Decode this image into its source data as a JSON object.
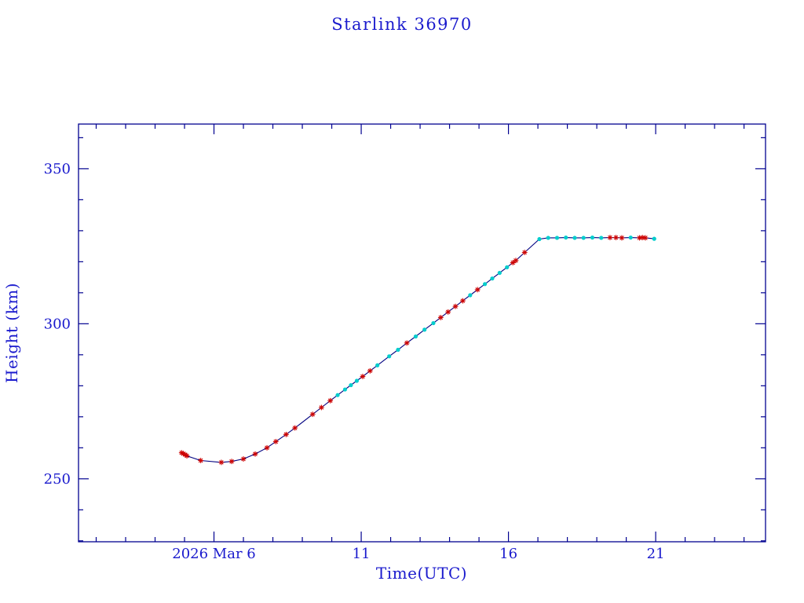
{
  "chart_data": {
    "type": "line",
    "title": "Starlink 36970",
    "xlabel": "Time(UTC)",
    "ylabel": "Height (km)",
    "x_unit": "day of 2026 March (UTC)",
    "xlim": [
      1.4,
      24.73
    ],
    "ylim": [
      229.7,
      364.4
    ],
    "x_major_ticks": [
      {
        "value": 6,
        "label": "2026 Mar 6"
      },
      {
        "value": 11,
        "label": "11"
      },
      {
        "value": 16,
        "label": "16"
      },
      {
        "value": 21,
        "label": "21"
      }
    ],
    "x_minor_tick_step": 1,
    "y_major_ticks": [
      {
        "value": 250,
        "label": "250"
      },
      {
        "value": 300,
        "label": "300"
      },
      {
        "value": 350,
        "label": "350"
      }
    ],
    "y_minor_tick_step": 10,
    "grid": false,
    "legend": "none",
    "colors": {
      "background": "#ffffff",
      "text": "#1a1acd",
      "frame": "#000090",
      "line": "#000080",
      "marker_red": "#cd0000",
      "marker_cyan": "#00cdcd"
    },
    "points": [
      {
        "x": 4.9,
        "y": 258.4,
        "m": "red"
      },
      {
        "x": 4.96,
        "y": 258.1,
        "m": "red"
      },
      {
        "x": 5.02,
        "y": 257.8,
        "m": "red"
      },
      {
        "x": 5.08,
        "y": 257.4,
        "m": "red"
      },
      {
        "x": 5.55,
        "y": 255.9,
        "m": "red"
      },
      {
        "x": 6.25,
        "y": 255.3,
        "m": "red"
      },
      {
        "x": 6.6,
        "y": 255.6,
        "m": "red"
      },
      {
        "x": 7.0,
        "y": 256.4,
        "m": "red"
      },
      {
        "x": 7.4,
        "y": 258.0,
        "m": "red"
      },
      {
        "x": 7.8,
        "y": 260.0,
        "m": "red"
      },
      {
        "x": 8.1,
        "y": 262.0,
        "m": "red"
      },
      {
        "x": 8.45,
        "y": 264.3,
        "m": "red"
      },
      {
        "x": 8.75,
        "y": 266.4,
        "m": "red"
      },
      {
        "x": 9.35,
        "y": 270.8,
        "m": "red"
      },
      {
        "x": 9.65,
        "y": 273.0,
        "m": "red"
      },
      {
        "x": 9.95,
        "y": 275.2,
        "m": "red"
      },
      {
        "x": 10.2,
        "y": 277.0,
        "m": "cyan"
      },
      {
        "x": 10.45,
        "y": 278.8,
        "m": "cyan"
      },
      {
        "x": 10.65,
        "y": 280.2,
        "m": "cyan"
      },
      {
        "x": 10.85,
        "y": 281.6,
        "m": "cyan"
      },
      {
        "x": 11.05,
        "y": 283.0,
        "m": "red"
      },
      {
        "x": 11.3,
        "y": 284.8,
        "m": "red"
      },
      {
        "x": 11.55,
        "y": 286.6,
        "m": "cyan"
      },
      {
        "x": 11.95,
        "y": 289.5,
        "m": "cyan"
      },
      {
        "x": 12.25,
        "y": 291.6,
        "m": "cyan"
      },
      {
        "x": 12.55,
        "y": 293.8,
        "m": "red"
      },
      {
        "x": 12.85,
        "y": 295.9,
        "m": "cyan"
      },
      {
        "x": 13.15,
        "y": 298.1,
        "m": "cyan"
      },
      {
        "x": 13.45,
        "y": 300.2,
        "m": "cyan"
      },
      {
        "x": 13.7,
        "y": 302.0,
        "m": "red"
      },
      {
        "x": 13.95,
        "y": 303.8,
        "m": "red"
      },
      {
        "x": 14.2,
        "y": 305.6,
        "m": "red"
      },
      {
        "x": 14.45,
        "y": 307.4,
        "m": "red"
      },
      {
        "x": 14.7,
        "y": 309.2,
        "m": "cyan"
      },
      {
        "x": 14.95,
        "y": 311.0,
        "m": "red"
      },
      {
        "x": 15.2,
        "y": 312.8,
        "m": "cyan"
      },
      {
        "x": 15.45,
        "y": 314.6,
        "m": "cyan"
      },
      {
        "x": 15.7,
        "y": 316.4,
        "m": "cyan"
      },
      {
        "x": 15.95,
        "y": 318.2,
        "m": "cyan"
      },
      {
        "x": 16.15,
        "y": 319.7,
        "m": "red"
      },
      {
        "x": 16.25,
        "y": 320.4,
        "m": "red"
      },
      {
        "x": 16.55,
        "y": 323.0,
        "m": "red"
      },
      {
        "x": 17.05,
        "y": 327.3,
        "m": "cyan"
      },
      {
        "x": 17.35,
        "y": 327.7,
        "m": "cyan"
      },
      {
        "x": 17.65,
        "y": 327.7,
        "m": "cyan"
      },
      {
        "x": 17.95,
        "y": 327.8,
        "m": "cyan"
      },
      {
        "x": 18.25,
        "y": 327.7,
        "m": "cyan"
      },
      {
        "x": 18.55,
        "y": 327.7,
        "m": "cyan"
      },
      {
        "x": 18.85,
        "y": 327.8,
        "m": "cyan"
      },
      {
        "x": 19.15,
        "y": 327.7,
        "m": "cyan"
      },
      {
        "x": 19.45,
        "y": 327.8,
        "m": "red"
      },
      {
        "x": 19.65,
        "y": 327.8,
        "m": "red"
      },
      {
        "x": 19.85,
        "y": 327.7,
        "m": "red"
      },
      {
        "x": 20.15,
        "y": 327.8,
        "m": "cyan"
      },
      {
        "x": 20.45,
        "y": 327.7,
        "m": "red"
      },
      {
        "x": 20.55,
        "y": 327.8,
        "m": "red"
      },
      {
        "x": 20.65,
        "y": 327.7,
        "m": "red"
      },
      {
        "x": 20.95,
        "y": 327.4,
        "m": "cyan"
      }
    ]
  }
}
